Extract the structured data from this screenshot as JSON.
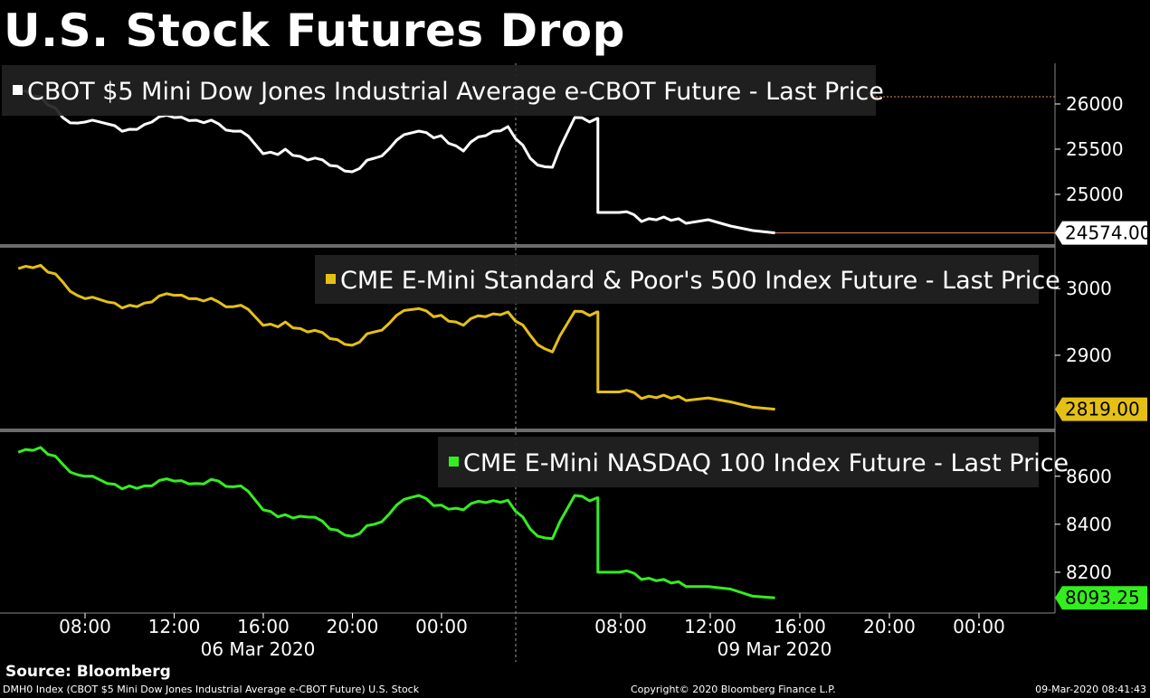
{
  "title": "U.S. Stock Futures Drop",
  "source": "Source: Bloomberg",
  "footer": {
    "left": "DMH0 Index (CBOT $5 Mini Dow Jones Industrial Average e-CBOT Future) U.S. Stock",
    "center": "Copyright© 2020 Bloomberg Finance L.P.",
    "right": "09-Mar-2020 08:41:43"
  },
  "chart_data": {
    "type": "line",
    "x_tick_labels": [
      "08:00",
      "12:00",
      "16:00",
      "20:00",
      "00:00",
      "08:00",
      "12:00",
      "16:00",
      "20:00",
      "00:00"
    ],
    "date_labels": [
      "06 Mar 2020",
      "09 Mar 2020"
    ],
    "panels": [
      {
        "name": "CBOT $5 Mini Dow Jones Industrial Average e-CBOT Future - Last Price",
        "color": "#ffffff",
        "y_ticks": [
          25000,
          25500,
          26000
        ],
        "y_tick_labels": [
          "25000",
          "25500",
          "26000"
        ],
        "ylim": [
          24450,
          26450
        ],
        "last_value_label": "24574.00",
        "x_hours": [
          5,
          6,
          7,
          8,
          9,
          10,
          11,
          12,
          13,
          14,
          15,
          16,
          17,
          18,
          19,
          20,
          21,
          22,
          23,
          24,
          25,
          26,
          27,
          28,
          29,
          30,
          31,
          32,
          33,
          34,
          35
        ],
        "values": [
          26150,
          26080,
          25850,
          25800,
          25780,
          25720,
          25800,
          25850,
          25820,
          25780,
          25700,
          25450,
          25500,
          25380,
          25320,
          25250,
          25400,
          25600,
          25700,
          25650,
          25480,
          25650,
          25750,
          25400,
          25300,
          25850,
          25840,
          24800,
          24700,
          24750,
          24680
        ],
        "tail_x_hours": [
          35,
          36,
          37,
          38,
          39
        ],
        "tail_values": [
          24680,
          24720,
          24650,
          24600,
          24574
        ]
      },
      {
        "name": "CME E-Mini Standard & Poor's 500 Index Future - Last Price",
        "color": "#e5c014",
        "y_ticks": [
          2900,
          3000
        ],
        "y_tick_labels": [
          "2900",
          "3000"
        ],
        "ylim": [
          2790,
          3060
        ],
        "last_value_label": "2819.00",
        "x_hours": [
          5,
          6,
          7,
          8,
          9,
          10,
          11,
          12,
          13,
          14,
          15,
          16,
          17,
          18,
          19,
          20,
          21,
          22,
          23,
          24,
          25,
          26,
          27,
          28,
          29,
          30,
          31,
          32,
          33,
          34,
          35
        ],
        "values": [
          3030,
          3035,
          3010,
          2985,
          2980,
          2975,
          2980,
          2990,
          2985,
          2980,
          2975,
          2945,
          2950,
          2935,
          2925,
          2915,
          2935,
          2960,
          2970,
          2960,
          2945,
          2958,
          2965,
          2930,
          2905,
          2966,
          2965,
          2845,
          2835,
          2840,
          2832
        ],
        "tail_x_hours": [
          35,
          36,
          37,
          38,
          39
        ],
        "tail_values": [
          2832,
          2836,
          2830,
          2822,
          2819
        ]
      },
      {
        "name": "CME E-Mini NASDAQ 100 Index Future - Last Price",
        "color": "#33ee1e",
        "y_ticks": [
          8200,
          8400,
          8600
        ],
        "y_tick_labels": [
          "8200",
          "8400",
          "8600"
        ],
        "ylim": [
          8030,
          8780
        ],
        "last_value_label": "8093.25",
        "x_hours": [
          5,
          6,
          7,
          8,
          9,
          10,
          11,
          12,
          13,
          14,
          15,
          16,
          17,
          18,
          19,
          20,
          21,
          22,
          23,
          24,
          25,
          26,
          27,
          28,
          29,
          30,
          31,
          32,
          33,
          34,
          35
        ],
        "values": [
          8700,
          8720,
          8650,
          8600,
          8570,
          8560,
          8560,
          8580,
          8570,
          8580,
          8560,
          8460,
          8440,
          8430,
          8380,
          8350,
          8400,
          8480,
          8520,
          8480,
          8460,
          8490,
          8500,
          8380,
          8340,
          8520,
          8510,
          8200,
          8170,
          8170,
          8140
        ],
        "tail_x_hours": [
          35,
          36,
          37,
          38,
          39
        ],
        "tail_values": [
          8140,
          8140,
          8130,
          8100,
          8093.25
        ]
      }
    ]
  }
}
